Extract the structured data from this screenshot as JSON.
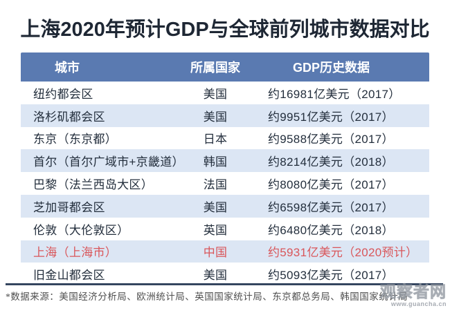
{
  "title": "上海2020年预计GDP与全球前列城市数据对比",
  "chart_data": {
    "type": "table",
    "title": "上海2020年预计GDP与全球前列城市数据对比",
    "columns": [
      "城市",
      "所属国家",
      "GDP历史数据"
    ],
    "rows": [
      {
        "city": "纽约都会区",
        "country": "美国",
        "gdp": "约16981亿美元（2017）",
        "gdp_yi_usd": 16981,
        "year": "2017",
        "highlight": false
      },
      {
        "city": "洛杉矶都会区",
        "country": "美国",
        "gdp": "约9951亿美元（2017）",
        "gdp_yi_usd": 9951,
        "year": "2017",
        "highlight": false
      },
      {
        "city": "东京（东京都）",
        "country": "日本",
        "gdp": "约9588亿美元（2017）",
        "gdp_yi_usd": 9588,
        "year": "2017",
        "highlight": false
      },
      {
        "city": "首尔（首尔广域市+京畿道）",
        "country": "韩国",
        "gdp": "约8214亿美元（2018）",
        "gdp_yi_usd": 8214,
        "year": "2018",
        "highlight": false
      },
      {
        "city": "巴黎（法兰西岛大区）",
        "country": "法国",
        "gdp": "约8080亿美元（2017）",
        "gdp_yi_usd": 8080,
        "year": "2017",
        "highlight": false
      },
      {
        "city": "芝加哥都会区",
        "country": "美国",
        "gdp": "约6598亿美元（2017）",
        "gdp_yi_usd": 6598,
        "year": "2017",
        "highlight": false
      },
      {
        "city": "伦敦（大伦敦区）",
        "country": "英国",
        "gdp": "约6480亿美元（2018）",
        "gdp_yi_usd": 6480,
        "year": "2018",
        "highlight": false
      },
      {
        "city": "上海（上海市）",
        "country": "中国",
        "gdp": "约5931亿美元（2020预计）",
        "gdp_yi_usd": 5931,
        "year": "2020预计",
        "highlight": true
      },
      {
        "city": "旧金山都会区",
        "country": "美国",
        "gdp": "约5093亿美元（2017）",
        "gdp_yi_usd": 5093,
        "year": "2017",
        "highlight": false
      }
    ]
  },
  "footnote": "*数据来源：美国经济分析局、欧洲统计局、英国国家统计局、东京都总务局、韩国国家统计局",
  "watermark": {
    "name": "观察者网",
    "url": "www.guancha.cn"
  },
  "colors": {
    "header_bg": "#5a7ab1",
    "stripe_bg": "#dce6f4",
    "body_text": "#232e3c",
    "title_text": "#1e2734",
    "highlight_text": "#d9565a",
    "divider": "#34455f"
  }
}
